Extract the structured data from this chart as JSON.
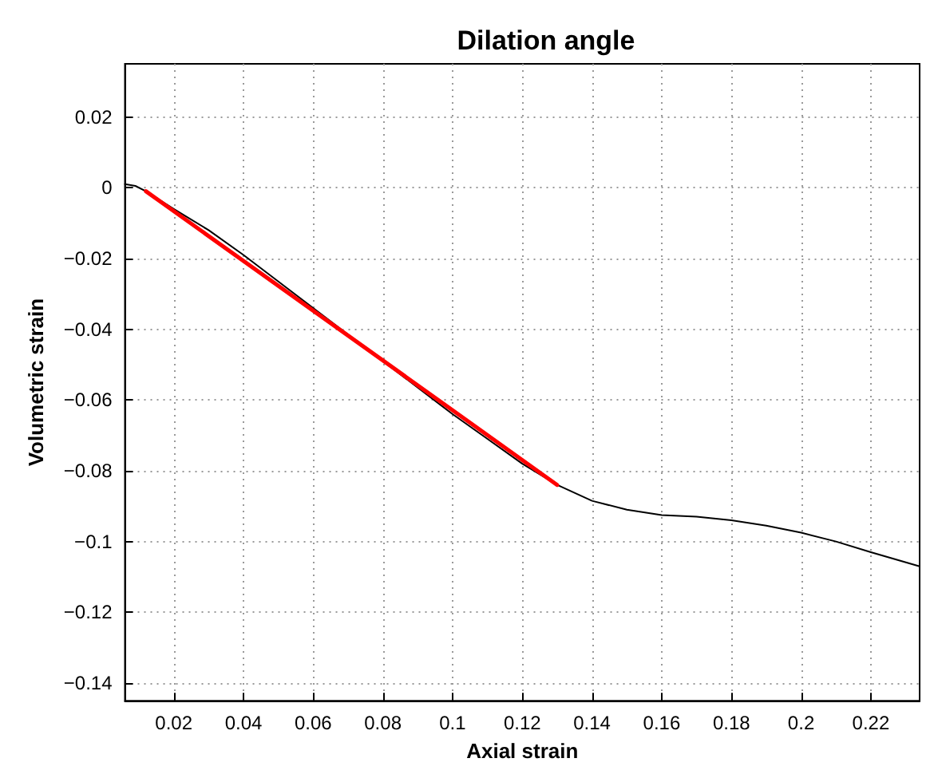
{
  "chart_data": {
    "type": "line",
    "title": "Dilation angle",
    "xlabel": "Axial strain",
    "ylabel": "Volumetric strain",
    "xlim": [
      0.006,
      0.234
    ],
    "xticks": [
      0.02,
      0.04,
      0.06,
      0.08,
      0.1,
      0.12,
      0.14,
      0.16,
      0.18,
      0.2,
      0.22
    ],
    "ylim": [
      -0.145,
      0.035
    ],
    "yticks": [
      -0.14,
      -0.12,
      -0.1,
      -0.08,
      -0.06,
      -0.04,
      -0.02,
      0,
      0.02
    ],
    "grid": true,
    "marker": "none",
    "line_style": "solid",
    "series": [
      {
        "color": "#000000",
        "x": [
          0.006,
          0.009,
          0.012,
          0.02,
          0.03,
          0.04,
          0.05,
          0.06,
          0.07,
          0.08,
          0.09,
          0.1,
          0.11,
          0.12,
          0.13,
          0.14,
          0.15,
          0.16,
          0.17,
          0.18,
          0.19,
          0.2,
          0.21,
          0.22,
          0.234
        ],
        "values": [
          0.001,
          0.0005,
          -0.001,
          -0.006,
          -0.012,
          -0.019,
          -0.0265,
          -0.034,
          -0.0415,
          -0.049,
          -0.0565,
          -0.064,
          -0.071,
          -0.078,
          -0.084,
          -0.0885,
          -0.091,
          -0.0925,
          -0.093,
          -0.094,
          -0.0955,
          -0.0975,
          -0.1,
          -0.103,
          -0.107
        ]
      },
      {
        "color": "#ff0000",
        "x": [
          0.012,
          0.13
        ],
        "values": [
          -0.001,
          -0.084
        ]
      }
    ]
  }
}
